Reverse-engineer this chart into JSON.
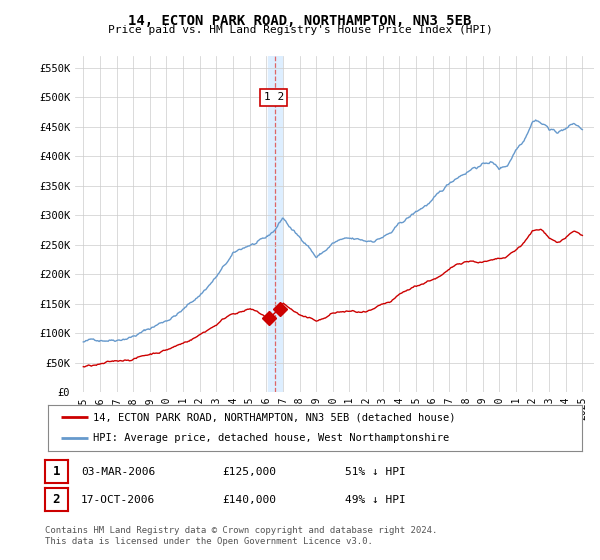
{
  "title": "14, ECTON PARK ROAD, NORTHAMPTON, NN3 5EB",
  "subtitle": "Price paid vs. HM Land Registry's House Price Index (HPI)",
  "legend_line1": "14, ECTON PARK ROAD, NORTHAMPTON, NN3 5EB (detached house)",
  "legend_line2": "HPI: Average price, detached house, West Northamptonshire",
  "table_row1": [
    "1",
    "03-MAR-2006",
    "£125,000",
    "51% ↓ HPI"
  ],
  "table_row2": [
    "2",
    "17-OCT-2006",
    "£140,000",
    "49% ↓ HPI"
  ],
  "footnote": "Contains HM Land Registry data © Crown copyright and database right 2024.\nThis data is licensed under the Open Government Licence v3.0.",
  "red_color": "#cc0000",
  "blue_color": "#6699cc",
  "vline_color": "#dd6666",
  "vband_color": "#ddeeff",
  "ylim": [
    0,
    570000
  ],
  "yticks": [
    0,
    50000,
    100000,
    150000,
    200000,
    250000,
    300000,
    350000,
    400000,
    450000,
    500000,
    550000
  ],
  "ytick_labels": [
    "£0",
    "£50K",
    "£100K",
    "£150K",
    "£200K",
    "£250K",
    "£300K",
    "£350K",
    "£400K",
    "£450K",
    "£500K",
    "£550K"
  ],
  "sale1_year": 2006.17,
  "sale1_value": 125000,
  "sale2_year": 2006.8,
  "sale2_value": 140000,
  "vline_x": 2006.5,
  "vband_xmin": 2006.1,
  "vband_xmax": 2006.95,
  "xtick_years": [
    1995,
    1996,
    1997,
    1998,
    1999,
    2000,
    2001,
    2002,
    2003,
    2004,
    2005,
    2006,
    2007,
    2008,
    2009,
    2010,
    2011,
    2012,
    2013,
    2014,
    2015,
    2016,
    2017,
    2018,
    2019,
    2020,
    2021,
    2022,
    2023,
    2024,
    2025
  ],
  "bg_color": "#ffffff",
  "grid_color": "#cccccc"
}
